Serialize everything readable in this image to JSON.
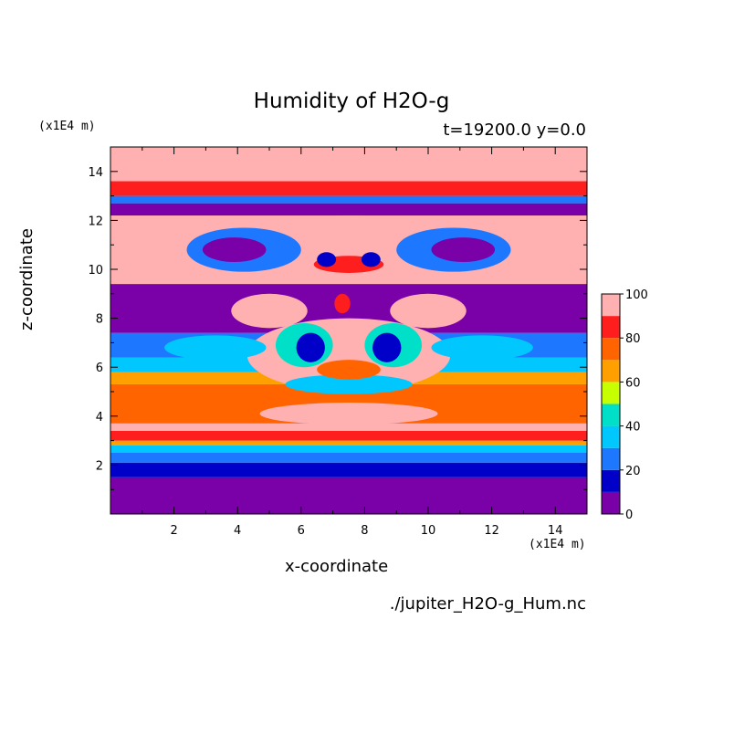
{
  "chart_data": {
    "type": "heatmap",
    "title": "Humidity of H2O-g",
    "subtitle": "t=19200.0 y=0.0",
    "xlabel": "x-coordinate",
    "ylabel": "z-coordinate",
    "x_unit": "(x1E4 m)",
    "y_unit": "(x1E4 m)",
    "xlim": [
      0,
      15
    ],
    "ylim": [
      0,
      15
    ],
    "x_ticks": [
      2,
      4,
      6,
      8,
      10,
      12,
      14
    ],
    "y_ticks": [
      2,
      4,
      6,
      8,
      10,
      12,
      14
    ],
    "colorbar": {
      "ticks": [
        0,
        20,
        40,
        60,
        80,
        100
      ],
      "levels": [
        0,
        10,
        20,
        30,
        40,
        50,
        60,
        70,
        80,
        90,
        100
      ],
      "colors": [
        "#7a00a8",
        "#0000c8",
        "#1e78ff",
        "#00c8ff",
        "#00e0c8",
        "#c8ff00",
        "#ffa000",
        "#ff6400",
        "#ff1e1e",
        "#ffb0b0"
      ]
    },
    "layers": [
      {
        "z": [
          0.0,
          1.5
        ],
        "value": 5
      },
      {
        "z": [
          1.5,
          2.1
        ],
        "value": 15
      },
      {
        "z": [
          2.1,
          2.5
        ],
        "value": 25
      },
      {
        "z": [
          2.5,
          2.8
        ],
        "value": 35
      },
      {
        "z": [
          2.8,
          3.0
        ],
        "value": 65
      },
      {
        "z": [
          3.0,
          3.4
        ],
        "value": 85
      },
      {
        "z": [
          3.4,
          3.7
        ],
        "value": 95
      },
      {
        "z": [
          3.7,
          5.3
        ],
        "value": 75
      },
      {
        "z": [
          5.3,
          5.8
        ],
        "value": 65
      },
      {
        "z": [
          5.8,
          6.4
        ],
        "value": 35
      },
      {
        "z": [
          6.4,
          7.4
        ],
        "value": 25
      },
      {
        "z": [
          7.4,
          9.4
        ],
        "value": 5
      },
      {
        "z": [
          9.4,
          12.2
        ],
        "value": 95
      },
      {
        "z": [
          12.2,
          12.7
        ],
        "value": 5
      },
      {
        "z": [
          12.7,
          13.0
        ],
        "value": 25
      },
      {
        "z": [
          13.0,
          13.6
        ],
        "value": 85
      },
      {
        "z": [
          13.6,
          15.0
        ],
        "value": 95
      }
    ],
    "blobs": [
      {
        "x": 7.5,
        "z": 11.6,
        "rx": 2.2,
        "rz": 0.6,
        "value": 95
      },
      {
        "x": 7.5,
        "z": 6.5,
        "rx": 3.2,
        "rz": 1.5,
        "value": 95
      },
      {
        "x": 4.2,
        "z": 10.8,
        "rx": 1.8,
        "rz": 0.9,
        "value": 25
      },
      {
        "x": 10.8,
        "z": 10.8,
        "rx": 1.8,
        "rz": 0.9,
        "value": 25
      },
      {
        "x": 3.9,
        "z": 10.8,
        "rx": 1.0,
        "rz": 0.5,
        "value": 5
      },
      {
        "x": 11.1,
        "z": 10.8,
        "rx": 1.0,
        "rz": 0.5,
        "value": 5
      },
      {
        "x": 7.5,
        "z": 10.2,
        "rx": 1.1,
        "rz": 0.35,
        "value": 85
      },
      {
        "x": 6.8,
        "z": 10.4,
        "rx": 0.3,
        "rz": 0.3,
        "value": 15
      },
      {
        "x": 8.2,
        "z": 10.4,
        "rx": 0.3,
        "rz": 0.3,
        "value": 15
      },
      {
        "x": 7.3,
        "z": 8.6,
        "rx": 0.25,
        "rz": 0.4,
        "value": 85
      },
      {
        "x": 6.1,
        "z": 6.9,
        "rx": 0.9,
        "rz": 0.9,
        "value": 45
      },
      {
        "x": 8.9,
        "z": 6.9,
        "rx": 0.9,
        "rz": 0.9,
        "value": 45
      },
      {
        "x": 6.3,
        "z": 6.8,
        "rx": 0.45,
        "rz": 0.6,
        "value": 15
      },
      {
        "x": 8.7,
        "z": 6.8,
        "rx": 0.45,
        "rz": 0.6,
        "value": 15
      },
      {
        "x": 7.5,
        "z": 5.3,
        "rx": 2.0,
        "rz": 0.4,
        "value": 35
      },
      {
        "x": 7.5,
        "z": 5.9,
        "rx": 1.0,
        "rz": 0.4,
        "value": 75
      },
      {
        "x": 5.0,
        "z": 8.3,
        "rx": 1.2,
        "rz": 0.7,
        "value": 95
      },
      {
        "x": 10.0,
        "z": 8.3,
        "rx": 1.2,
        "rz": 0.7,
        "value": 95
      },
      {
        "x": 3.3,
        "z": 6.8,
        "rx": 1.6,
        "rz": 0.5,
        "value": 35
      },
      {
        "x": 11.7,
        "z": 6.8,
        "rx": 1.6,
        "rz": 0.5,
        "value": 35
      },
      {
        "x": 7.5,
        "z": 4.1,
        "rx": 2.8,
        "rz": 0.45,
        "value": 95
      }
    ]
  },
  "footer": {
    "source": "./jupiter_H2O-g_Hum.nc"
  }
}
